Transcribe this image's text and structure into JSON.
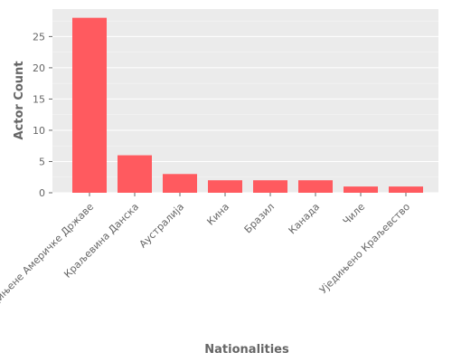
{
  "colors": {
    "bar": "#ff5a5f",
    "plot_background": "#ebebeb",
    "grid": "#ffffff",
    "tick_text": "#666666"
  },
  "chart_data": {
    "type": "bar",
    "categories": [
      "Сједињене Америчке Државе",
      "Краљевина Данска",
      "Аустралија",
      "Кина",
      "Бразил",
      "Канада",
      "Чиле",
      "Уједињено Краљевство"
    ],
    "values": [
      28,
      6,
      3,
      2,
      2,
      2,
      1,
      1
    ],
    "title": "",
    "xlabel": "Nationalities",
    "ylabel": "Actor Count",
    "ylim": [
      0,
      29.4
    ],
    "yticks": [
      0,
      5,
      10,
      15,
      20,
      25
    ],
    "grid": true,
    "legend": "none"
  }
}
